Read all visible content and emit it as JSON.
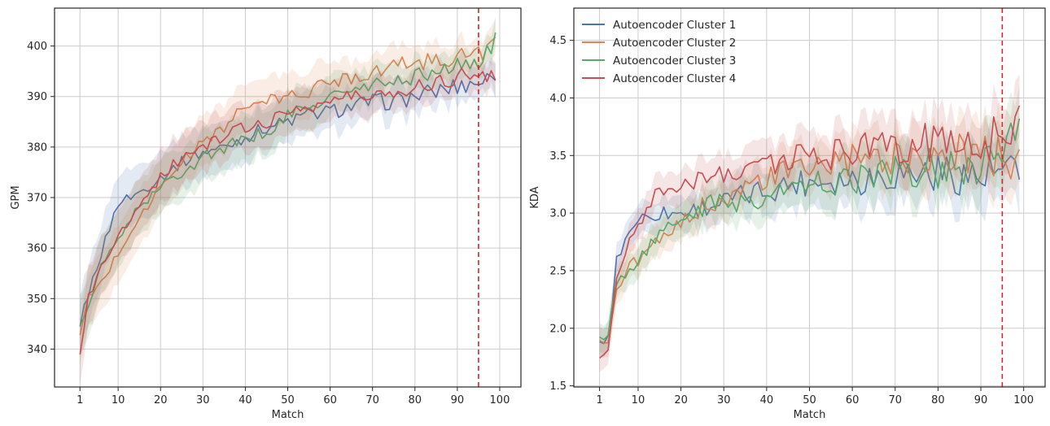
{
  "chart_data": [
    {
      "type": "line",
      "xlabel": "Match",
      "ylabel": "GPM",
      "xlim": [
        -5,
        105
      ],
      "ylim": [
        332.5,
        407.5
      ],
      "xticks": [
        1,
        10,
        20,
        30,
        40,
        50,
        60,
        70,
        80,
        90,
        100
      ],
      "yticks": [
        340,
        350,
        360,
        370,
        380,
        390,
        400
      ],
      "grid": true,
      "vline": {
        "x": 95,
        "color": "#d62728",
        "style": "dashed"
      },
      "band_half_width": [
        6,
        2.8
      ],
      "series": [
        {
          "name": "Autoencoder Cluster 1",
          "color": "#4c72b0",
          "anchors": [
            [
              1,
              345
            ],
            [
              3,
              351
            ],
            [
              6,
              359
            ],
            [
              10,
              369
            ],
            [
              15,
              371
            ],
            [
              20,
              374
            ],
            [
              25,
              377
            ],
            [
              30,
              379
            ],
            [
              35,
              380
            ],
            [
              40,
              382
            ],
            [
              45,
              384
            ],
            [
              50,
              385
            ],
            [
              55,
              386.5
            ],
            [
              60,
              387
            ],
            [
              65,
              388
            ],
            [
              70,
              389
            ],
            [
              75,
              389
            ],
            [
              80,
              390
            ],
            [
              85,
              391
            ],
            [
              90,
              392
            ],
            [
              95,
              393
            ],
            [
              99,
              394
            ]
          ]
        },
        {
          "name": "Autoencoder Cluster 2",
          "color": "#dd8452",
          "anchors": [
            [
              1,
              342.5
            ],
            [
              3,
              350
            ],
            [
              6,
              353
            ],
            [
              10,
              359
            ],
            [
              15,
              366
            ],
            [
              20,
              372
            ],
            [
              25,
              377
            ],
            [
              30,
              381
            ],
            [
              35,
              384
            ],
            [
              40,
              388
            ],
            [
              45,
              389
            ],
            [
              50,
              390
            ],
            [
              55,
              391
            ],
            [
              60,
              393
            ],
            [
              65,
              394
            ],
            [
              70,
              395
            ],
            [
              75,
              396
            ],
            [
              80,
              397
            ],
            [
              85,
              397
            ],
            [
              90,
              398
            ],
            [
              95,
              398.5
            ],
            [
              99,
              401
            ]
          ]
        },
        {
          "name": "Autoencoder Cluster 3",
          "color": "#55a868",
          "anchors": [
            [
              1,
              344.5
            ],
            [
              3,
              349
            ],
            [
              6,
              356
            ],
            [
              10,
              362
            ],
            [
              15,
              368
            ],
            [
              20,
              372
            ],
            [
              25,
              375
            ],
            [
              30,
              378
            ],
            [
              35,
              380
            ],
            [
              40,
              381.5
            ],
            [
              45,
              383
            ],
            [
              50,
              386
            ],
            [
              55,
              388
            ],
            [
              60,
              390
            ],
            [
              65,
              391
            ],
            [
              70,
              392
            ],
            [
              75,
              393
            ],
            [
              80,
              394
            ],
            [
              85,
              395
            ],
            [
              90,
              396
            ],
            [
              95,
              397
            ],
            [
              99,
              401
            ]
          ]
        },
        {
          "name": "Autoencoder Cluster 4",
          "color": "#c44e52",
          "anchors": [
            [
              1,
              339
            ],
            [
              3,
              350
            ],
            [
              6,
              356
            ],
            [
              10,
              362
            ],
            [
              15,
              369
            ],
            [
              20,
              374
            ],
            [
              25,
              378
            ],
            [
              30,
              380
            ],
            [
              35,
              382
            ],
            [
              40,
              384
            ],
            [
              45,
              385
            ],
            [
              50,
              387
            ],
            [
              55,
              388
            ],
            [
              60,
              389
            ],
            [
              65,
              390
            ],
            [
              70,
              390
            ],
            [
              75,
              391
            ],
            [
              80,
              392
            ],
            [
              85,
              393
            ],
            [
              90,
              394
            ],
            [
              95,
              395
            ],
            [
              99,
              394
            ]
          ]
        }
      ]
    },
    {
      "type": "line",
      "xlabel": "Match",
      "ylabel": "KDA",
      "xlim": [
        -5,
        105
      ],
      "ylim": [
        1.49,
        4.78
      ],
      "xticks": [
        1,
        10,
        20,
        30,
        40,
        50,
        60,
        70,
        80,
        90,
        100
      ],
      "yticks": [
        1.5,
        2.0,
        2.5,
        3.0,
        3.5,
        4.0,
        4.5
      ],
      "grid": true,
      "legend": "upper-left",
      "vline": {
        "x": 95,
        "color": "#d62728",
        "style": "dashed"
      },
      "band_half_width": [
        0.12,
        0.28
      ],
      "series": [
        {
          "name": "Autoencoder Cluster 1",
          "color": "#4c72b0",
          "anchors": [
            [
              1,
              1.88
            ],
            [
              3,
              1.9
            ],
            [
              5,
              2.6
            ],
            [
              8,
              2.85
            ],
            [
              10,
              2.95
            ],
            [
              15,
              3.0
            ],
            [
              20,
              3.0
            ],
            [
              25,
              3.05
            ],
            [
              30,
              3.1
            ],
            [
              35,
              3.15
            ],
            [
              40,
              3.2
            ],
            [
              45,
              3.25
            ],
            [
              50,
              3.28
            ],
            [
              55,
              3.3
            ],
            [
              60,
              3.3
            ],
            [
              65,
              3.32
            ],
            [
              70,
              3.35
            ],
            [
              75,
              3.35
            ],
            [
              80,
              3.35
            ],
            [
              85,
              3.35
            ],
            [
              90,
              3.3
            ],
            [
              95,
              3.35
            ],
            [
              99,
              3.27
            ]
          ]
        },
        {
          "name": "Autoencoder Cluster 2",
          "color": "#dd8452",
          "anchors": [
            [
              1,
              1.92
            ],
            [
              3,
              1.9
            ],
            [
              5,
              2.3
            ],
            [
              8,
              2.55
            ],
            [
              10,
              2.6
            ],
            [
              15,
              2.75
            ],
            [
              20,
              2.9
            ],
            [
              25,
              3.05
            ],
            [
              30,
              3.15
            ],
            [
              35,
              3.2
            ],
            [
              40,
              3.3
            ],
            [
              45,
              3.35
            ],
            [
              50,
              3.4
            ],
            [
              55,
              3.42
            ],
            [
              60,
              3.45
            ],
            [
              65,
              3.45
            ],
            [
              70,
              3.5
            ],
            [
              75,
              3.5
            ],
            [
              80,
              3.5
            ],
            [
              85,
              3.5
            ],
            [
              90,
              3.5
            ],
            [
              95,
              3.5
            ],
            [
              99,
              3.52
            ]
          ]
        },
        {
          "name": "Autoencoder Cluster 3",
          "color": "#55a868",
          "anchors": [
            [
              1,
              1.9
            ],
            [
              3,
              1.95
            ],
            [
              5,
              2.4
            ],
            [
              8,
              2.5
            ],
            [
              10,
              2.6
            ],
            [
              15,
              2.8
            ],
            [
              20,
              2.95
            ],
            [
              25,
              3.05
            ],
            [
              30,
              3.1
            ],
            [
              35,
              3.1
            ],
            [
              40,
              3.15
            ],
            [
              45,
              3.2
            ],
            [
              50,
              3.25
            ],
            [
              55,
              3.28
            ],
            [
              60,
              3.3
            ],
            [
              65,
              3.33
            ],
            [
              70,
              3.35
            ],
            [
              75,
              3.38
            ],
            [
              80,
              3.4
            ],
            [
              85,
              3.42
            ],
            [
              90,
              3.45
            ],
            [
              95,
              3.5
            ],
            [
              99,
              3.7
            ]
          ]
        },
        {
          "name": "Autoencoder Cluster 4",
          "color": "#c44e52",
          "anchors": [
            [
              1,
              1.77
            ],
            [
              3,
              1.85
            ],
            [
              5,
              2.4
            ],
            [
              8,
              2.8
            ],
            [
              10,
              2.9
            ],
            [
              15,
              3.2
            ],
            [
              20,
              3.25
            ],
            [
              25,
              3.3
            ],
            [
              30,
              3.35
            ],
            [
              35,
              3.4
            ],
            [
              40,
              3.45
            ],
            [
              45,
              3.45
            ],
            [
              50,
              3.5
            ],
            [
              55,
              3.5
            ],
            [
              60,
              3.55
            ],
            [
              65,
              3.55
            ],
            [
              70,
              3.6
            ],
            [
              75,
              3.6
            ],
            [
              80,
              3.6
            ],
            [
              85,
              3.6
            ],
            [
              90,
              3.65
            ],
            [
              95,
              3.7
            ],
            [
              99,
              3.78
            ]
          ]
        }
      ]
    }
  ]
}
